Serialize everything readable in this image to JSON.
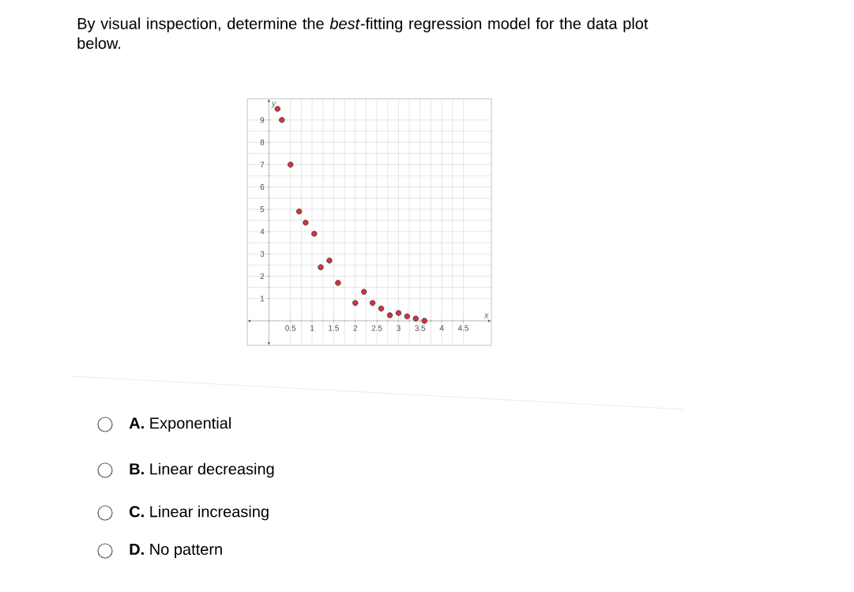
{
  "chart_data": {
    "type": "scatter",
    "title": "By visual inspection, determine the *best*-fitting regression model for the data plot below.",
    "xlabel": "x",
    "ylabel": "y",
    "x": [
      0.2,
      0.3,
      0.5,
      0.7,
      0.85,
      1.05,
      1.2,
      1.4,
      1.6,
      2.0,
      2.2,
      2.4,
      2.6,
      2.8,
      3.0,
      3.2,
      3.4,
      3.6
    ],
    "values": [
      9.5,
      9,
      7,
      4.9,
      4.4,
      3.9,
      2.4,
      2.7,
      1.7,
      0.8,
      1.3,
      0.8,
      0.55,
      0.25,
      0.35,
      0.2,
      0.1,
      0
    ],
    "color": "#d7313a",
    "marker": "circle",
    "grid": true,
    "xlim": [
      -0.5,
      5.15
    ],
    "ylim": [
      -1.1,
      9.95
    ],
    "xticks": [
      0.5,
      1,
      1.5,
      2,
      2.5,
      3,
      3.5,
      4,
      4.5
    ],
    "yticks": [
      1,
      2,
      3,
      4,
      5,
      6,
      7,
      8,
      9
    ],
    "annotations": [
      "**A.** Exponential",
      "**B.** Linear decreasing",
      "**C.** Linear increasing",
      "**D.** No pattern"
    ]
  }
}
